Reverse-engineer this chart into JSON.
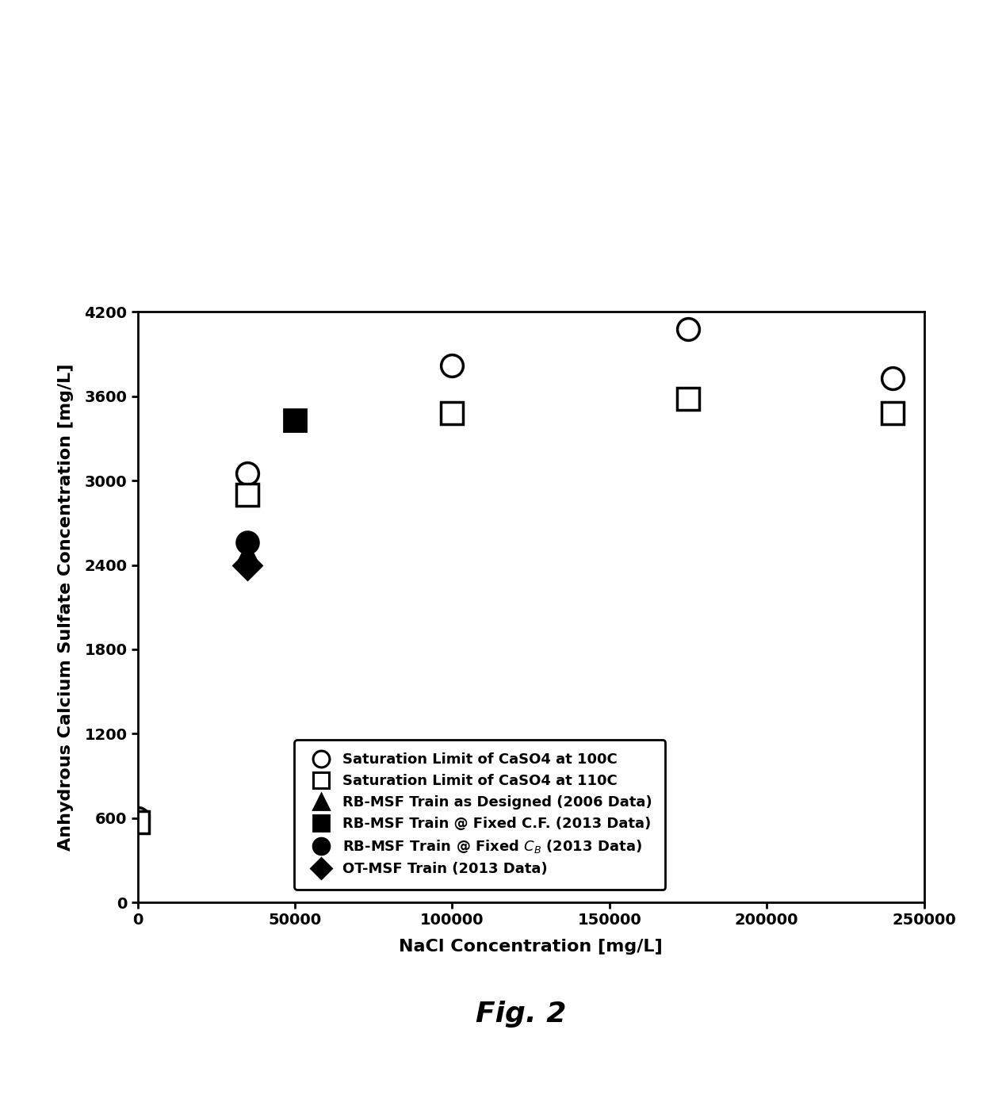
{
  "xlabel": "NaCl Concentration [mg/L]",
  "ylabel": "Anhydrous Calcium Sulfate Concentration [mg/L]",
  "xlim": [
    0,
    250000
  ],
  "ylim": [
    0,
    4200
  ],
  "xticks": [
    0,
    50000,
    100000,
    150000,
    200000,
    250000
  ],
  "yticks": [
    0,
    600,
    1200,
    1800,
    2400,
    3000,
    3600,
    4200
  ],
  "series": {
    "sat100": {
      "x": [
        0,
        35000,
        100000,
        175000,
        240000
      ],
      "y": [
        600,
        3050,
        3820,
        4080,
        3730
      ],
      "marker": "o",
      "color": "black",
      "facecolor": "white",
      "markersize": 20,
      "markeredgewidth": 2.5
    },
    "sat110": {
      "x": [
        0,
        35000,
        100000,
        175000,
        240000
      ],
      "y": [
        570,
        2900,
        3480,
        3580,
        3480
      ],
      "marker": "s",
      "color": "black",
      "facecolor": "white",
      "markersize": 20,
      "markeredgewidth": 2.5
    },
    "rb_msf_2006": {
      "x": [
        35000
      ],
      "y": [
        2480
      ],
      "marker": "^",
      "color": "black",
      "facecolor": "black",
      "markersize": 20,
      "markeredgewidth": 2.0
    },
    "rb_msf_cf_2013": {
      "x": [
        50000
      ],
      "y": [
        3430
      ],
      "marker": "s",
      "color": "black",
      "facecolor": "black",
      "markersize": 20,
      "markeredgewidth": 2.0
    },
    "rb_msf_cb_2013": {
      "x": [
        35000
      ],
      "y": [
        2560
      ],
      "marker": "o",
      "color": "black",
      "facecolor": "black",
      "markersize": 20,
      "markeredgewidth": 2.0
    },
    "ot_msf_2013": {
      "x": [
        35000
      ],
      "y": [
        2400
      ],
      "marker": "D",
      "color": "black",
      "facecolor": "black",
      "markersize": 18,
      "markeredgewidth": 2.0
    }
  },
  "legend_labels": [
    "Saturation Limit of CaSO4 at 100C",
    "Saturation Limit of CaSO4 at 110C",
    "RB-MSF Train as Designed (2006 Data)",
    "RB-MSF Train @ Fixed C.F. (2013 Data)",
    "RB-MSF Train @ Fixed $C_B$ (2013 Data)",
    "OT-MSF Train (2013 Data)"
  ],
  "background_color": "#ffffff",
  "fig_label": "Fig. 2",
  "fig_label_fontsize": 26
}
